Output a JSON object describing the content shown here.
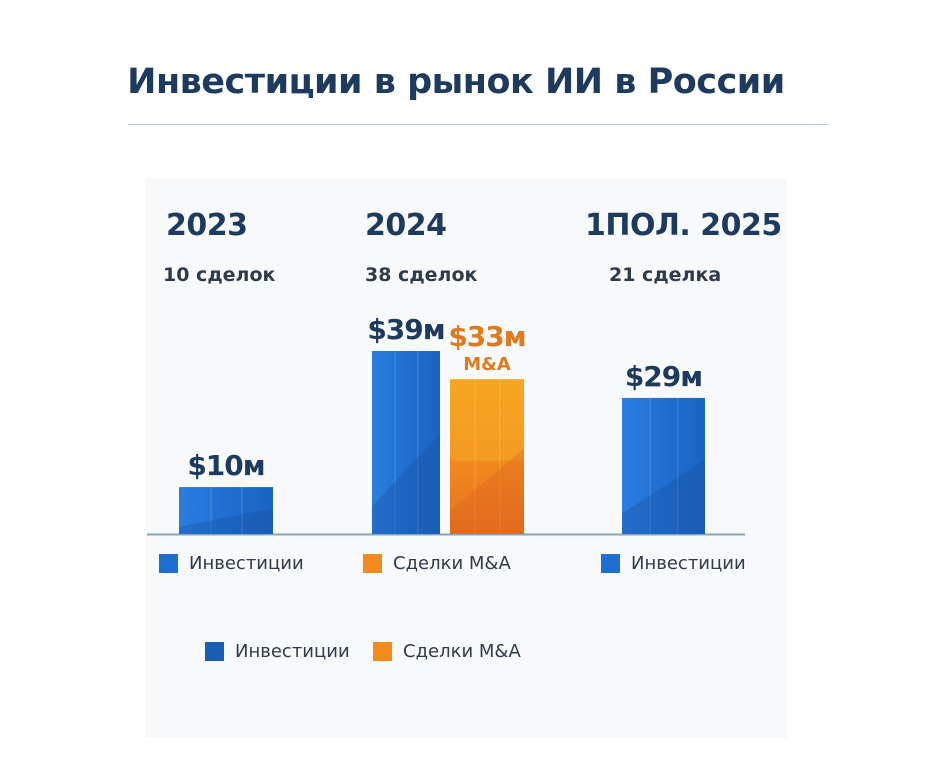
{
  "title": "Инвестиции в рынок ИИ в России",
  "colors": {
    "investment": "#1f6fd1",
    "investment_dark": "#1a5db4",
    "mna": "#f28a1e",
    "mna_dark": "#e6701f",
    "title": "#1d3a5f",
    "mna_label": "#e07a1c"
  },
  "chart_data": {
    "type": "bar",
    "title": "Инвестиции в рынок ИИ в России",
    "periods": [
      {
        "year": "2023",
        "deals": "10 сделок"
      },
      {
        "year": "2024",
        "deals": "38 сделок"
      },
      {
        "year": "1ПОЛ. 2025",
        "deals": "21 сделка"
      }
    ],
    "series": [
      {
        "name": "Инвестиции",
        "values": [
          10,
          39,
          29
        ],
        "labels": [
          "$10м",
          "$39м",
          "$29м"
        ]
      },
      {
        "name": "Сделки M&A",
        "values": [
          null,
          33,
          null
        ],
        "labels": [
          "",
          "$33м",
          ""
        ],
        "sublabels": [
          "",
          "M&A",
          ""
        ]
      }
    ],
    "unit": "$ млн",
    "ylim": [
      0,
      39
    ],
    "grid": false,
    "legend_placement": "bottom"
  },
  "group_legends": [
    {
      "label": "Инвестиции",
      "color": "#1f6fd1"
    },
    {
      "label": "Сделки M&A",
      "color": "#f28a1e"
    },
    {
      "label": "Инвестиции",
      "color": "#1f6fd1"
    }
  ],
  "legend": [
    {
      "label": "Инвестиции",
      "color": "#1a5db4"
    },
    {
      "label": "Сделки M&A",
      "color": "#f28a1e"
    }
  ]
}
